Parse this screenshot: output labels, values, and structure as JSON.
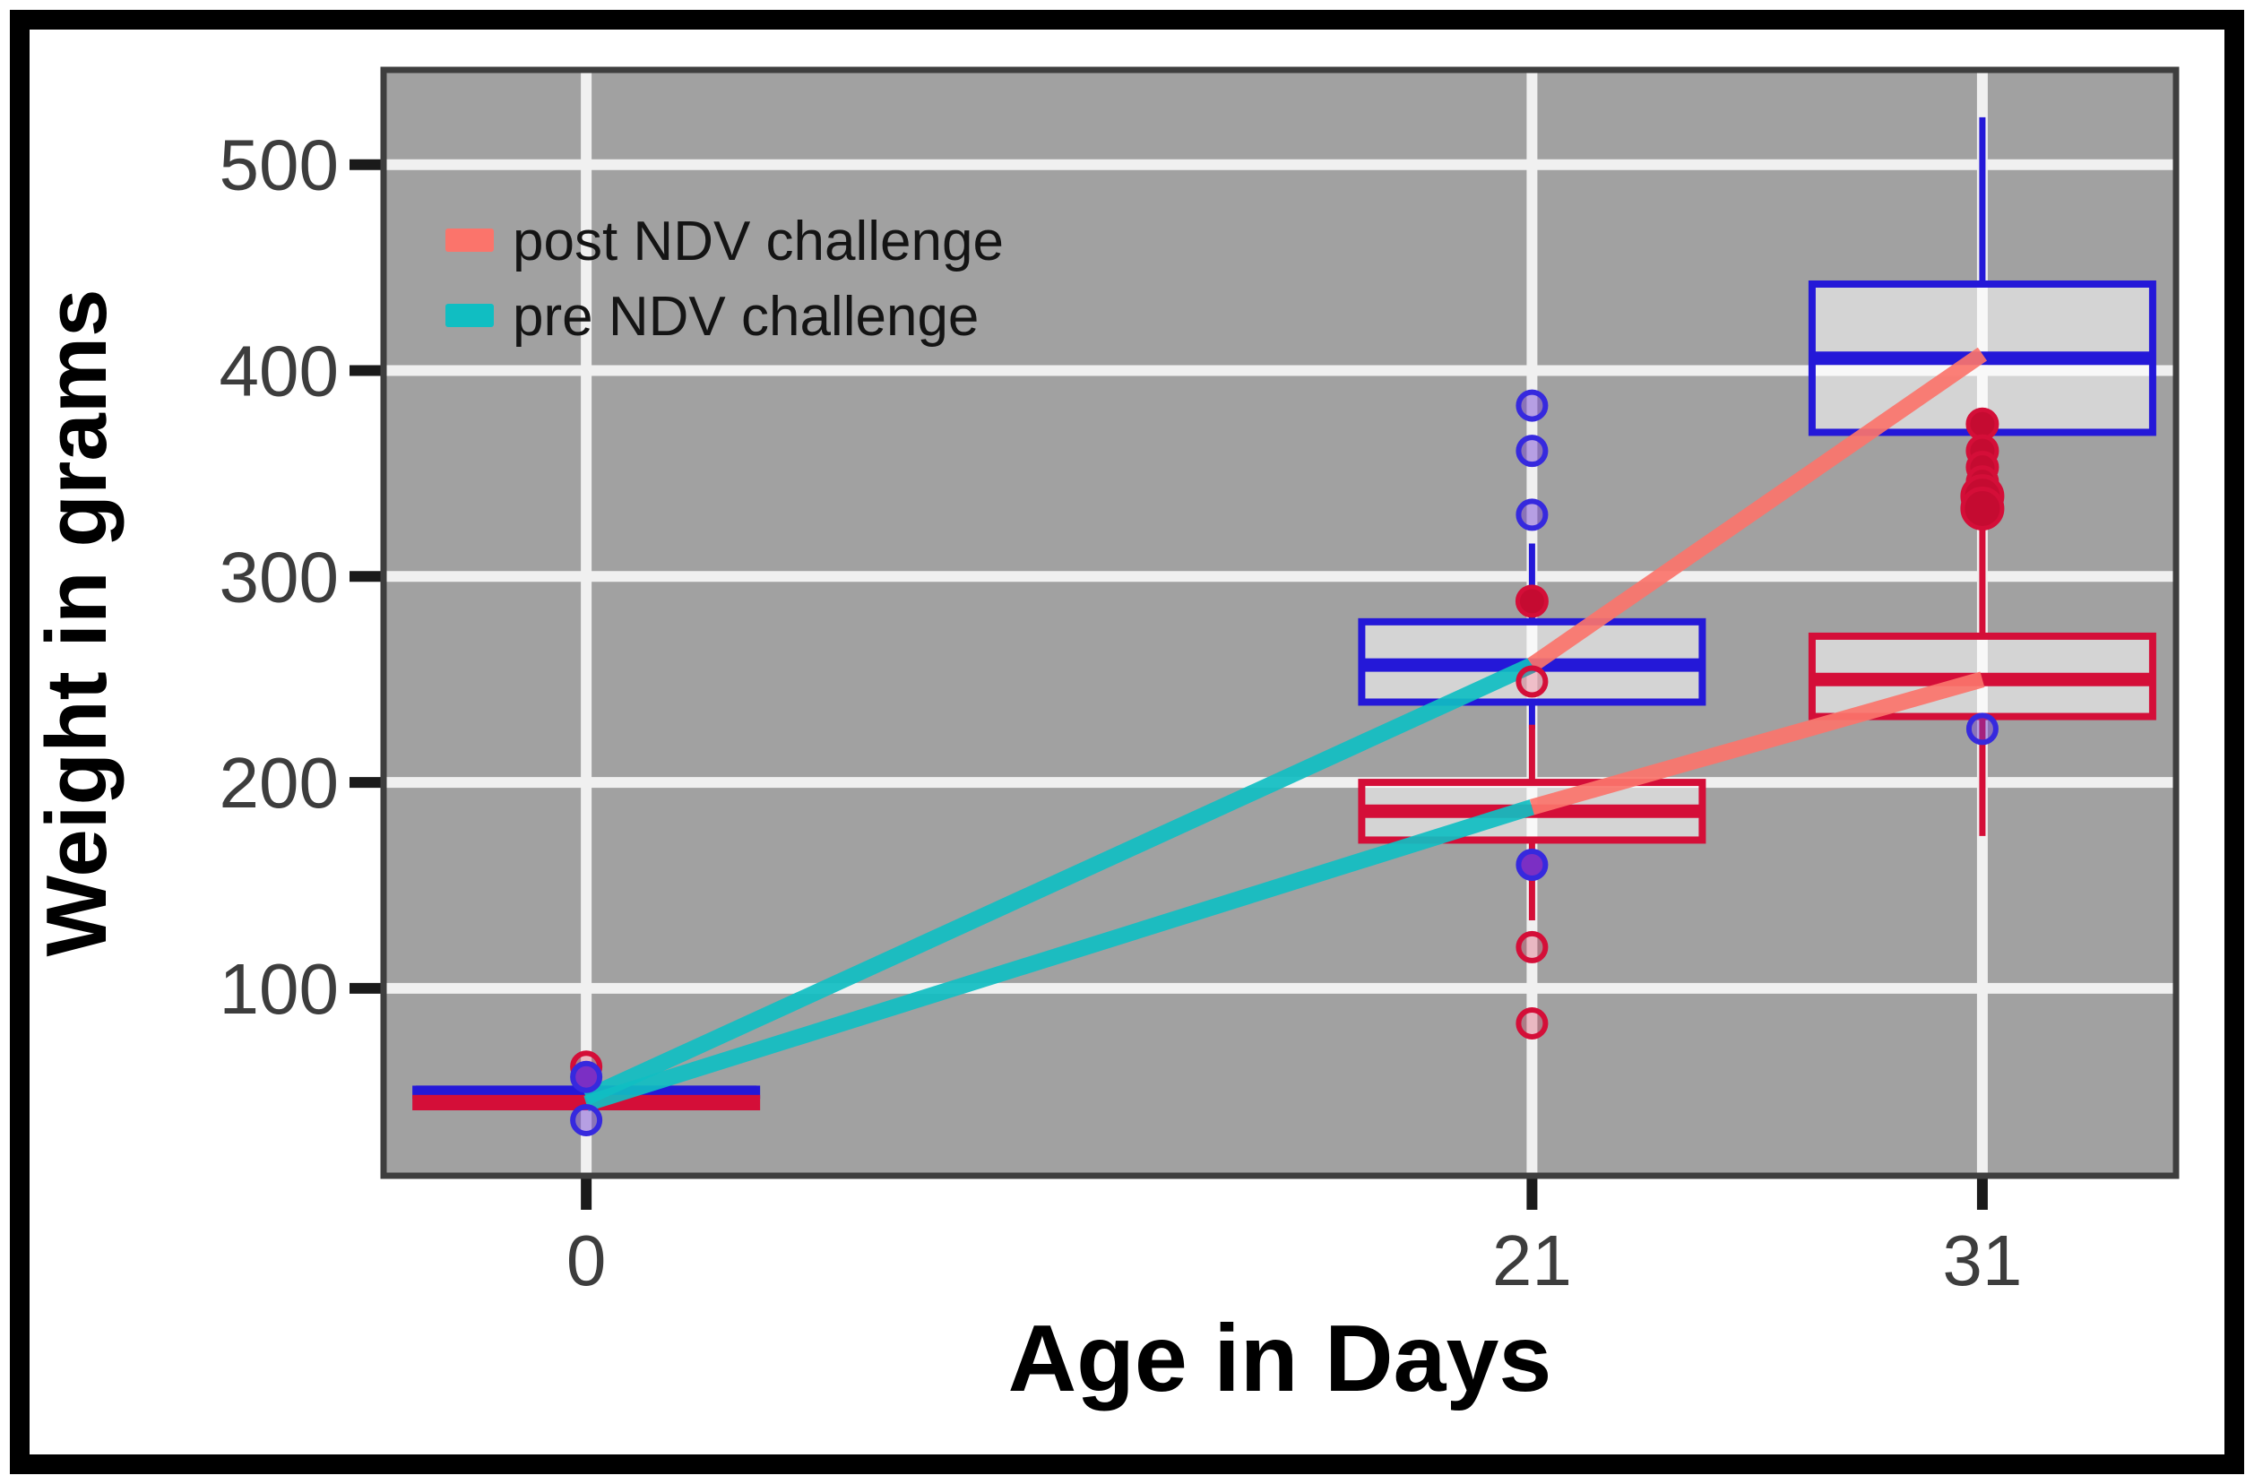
{
  "chart_data": {
    "type": "boxplot",
    "title": "",
    "xlabel": "Age in Days",
    "ylabel": "Weight in grams",
    "x_ticks": [
      0,
      21,
      31
    ],
    "y_ticks": [
      100,
      200,
      300,
      400,
      500
    ],
    "xlim": [
      -4.5,
      35.3
    ],
    "ylim": [
      9,
      546
    ],
    "grid": true,
    "legend_position": "top-left-inside",
    "groups": [
      {
        "name": "blue-group",
        "color_key": "blue",
        "boxes": [
          {
            "x": 0,
            "lo": 47,
            "q1": 48,
            "med": 49.5,
            "q3": 51,
            "hi": 52,
            "outliers": []
          },
          {
            "x": 21,
            "lo": 226,
            "q1": 239,
            "med": 257,
            "q3": 278,
            "hi": 316,
            "outliers": [
              {
                "y": 383,
                "style": "open-blue"
              },
              {
                "y": 361,
                "style": "open-blue"
              },
              {
                "y": 330,
                "style": "open-blue"
              },
              {
                "y": 160,
                "style": "filled-purple"
              }
            ]
          },
          {
            "x": 31,
            "lo": 352,
            "q1": 370,
            "med": 406,
            "q3": 442,
            "hi": 523,
            "outliers": [
              {
                "y": 226,
                "style": "open-blue"
              }
            ]
          }
        ]
      },
      {
        "name": "red-group",
        "color_key": "red",
        "boxes": [
          {
            "x": 0,
            "lo": 41,
            "q1": 42.5,
            "med": 44.5,
            "q3": 46.5,
            "hi": 48,
            "outliers": [
              {
                "y": 62,
                "style": "open-red"
              },
              {
                "y": 57,
                "style": "filled-purple"
              },
              {
                "y": 36,
                "style": "open-blue"
              }
            ]
          },
          {
            "x": 21,
            "lo": 133,
            "q1": 172,
            "med": 186,
            "q3": 200,
            "hi": 228,
            "outliers": [
              {
                "y": 288,
                "style": "filled-red"
              },
              {
                "y": 249,
                "style": "open-red"
              },
              {
                "y": 120,
                "style": "open-red"
              },
              {
                "y": 83,
                "style": "open-red"
              }
            ]
          },
          {
            "x": 31,
            "lo": 174,
            "q1": 232,
            "med": 250,
            "q3": 271,
            "hi": 330,
            "outliers": [
              {
                "y": 374,
                "style": "filled-red"
              },
              {
                "y": 361,
                "style": "filled-red"
              },
              {
                "y": 353,
                "style": "filled-red"
              },
              {
                "y": 346,
                "style": "filled-red"
              },
              {
                "y": 339,
                "style": "filled-red-big"
              },
              {
                "y": 333,
                "style": "filled-red-big"
              }
            ]
          }
        ]
      }
    ],
    "trend_lines": [
      {
        "series": "pre NDV challenge",
        "color_key": "teal",
        "x1": 0,
        "y1": 47,
        "x2": 21,
        "y2": 257
      },
      {
        "series": "pre NDV challenge",
        "color_key": "teal",
        "x1": 0,
        "y1": 44,
        "x2": 21,
        "y2": 188
      },
      {
        "series": "post NDV challenge",
        "color_key": "salmon",
        "x1": 21,
        "y1": 257,
        "x2": 31,
        "y2": 408
      },
      {
        "series": "post NDV challenge",
        "color_key": "salmon",
        "x1": 21,
        "y1": 188,
        "x2": 31,
        "y2": 250
      }
    ]
  },
  "legend": {
    "items": [
      {
        "label": "post NDV challenge",
        "color_key": "salmon"
      },
      {
        "label": "pre NDV challenge",
        "color_key": "teal"
      }
    ]
  },
  "colors": {
    "salmon": "#fb746b",
    "teal": "#10bec2",
    "blue": "#2418d8",
    "red": "#d40e38",
    "purple": "#7b2fc4",
    "blue_ring": "#3629de",
    "panel_bg": "#a1a1a1",
    "gridline": "#f0f0f0",
    "panel_border": "#3e3e3e",
    "box_fill": "rgba(255,255,255,0.55)",
    "tick_mark": "#1a1a1a",
    "tick_label": "#3d3d3d",
    "figure_border": "#000000"
  }
}
